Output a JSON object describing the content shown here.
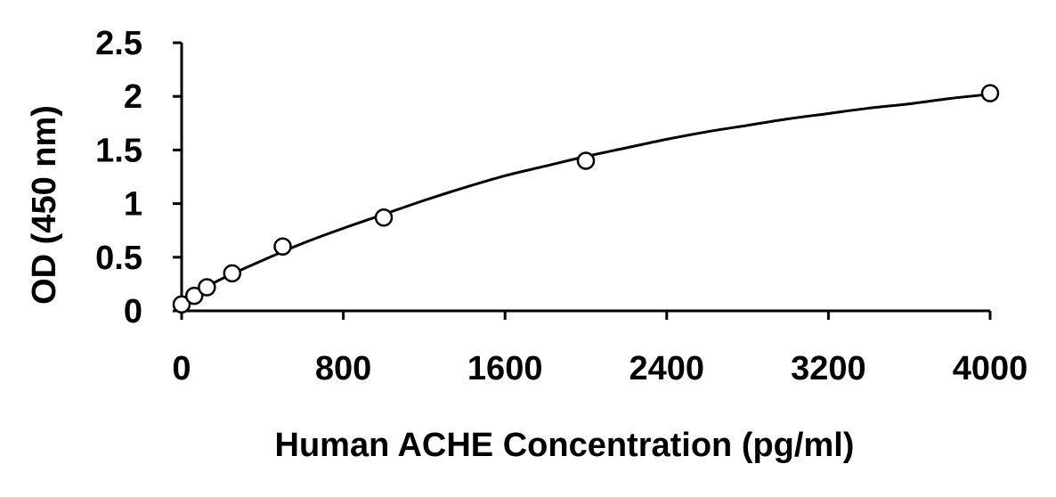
{
  "chart_data": {
    "type": "scatter",
    "title": "",
    "xlabel": "Human ACHE Concentration (pg/ml)",
    "ylabel": "OD (450 nm)",
    "xlim": [
      0,
      4000
    ],
    "ylim": [
      0,
      2.5
    ],
    "x_ticks": [
      0,
      800,
      1600,
      2400,
      3200,
      4000
    ],
    "y_ticks": [
      0,
      0.5,
      1,
      1.5,
      2,
      2.5
    ],
    "x_tick_labels": [
      "0",
      "800",
      "1600",
      "2400",
      "3200",
      "4000"
    ],
    "y_tick_labels": [
      "0",
      "0.5",
      "1",
      "1.5",
      "2",
      "2.5"
    ],
    "grid": false,
    "legend": "none",
    "series": [
      {
        "marker": "open-circle",
        "x": [
          0,
          62.5,
          125,
          250,
          500,
          1000,
          2000,
          4000
        ],
        "y": [
          0.06,
          0.14,
          0.22,
          0.35,
          0.6,
          0.87,
          1.4,
          2.03
        ]
      }
    ],
    "fit_curve": {
      "kind": "4PL",
      "x": [
        0,
        200,
        400,
        600,
        800,
        1000,
        1200,
        1400,
        1600,
        1800,
        2000,
        2200,
        2400,
        2600,
        2800,
        3000,
        3200,
        3400,
        3600,
        3800,
        4000
      ],
      "y": [
        0.1,
        0.3,
        0.47,
        0.63,
        0.77,
        0.9,
        1.03,
        1.15,
        1.26,
        1.35,
        1.44,
        1.52,
        1.6,
        1.67,
        1.73,
        1.79,
        1.84,
        1.89,
        1.93,
        1.98,
        2.02
      ]
    },
    "colors": {
      "axis": "#000000",
      "marker_stroke": "#000000",
      "marker_fill": "#ffffff",
      "curve": "#000000"
    }
  }
}
